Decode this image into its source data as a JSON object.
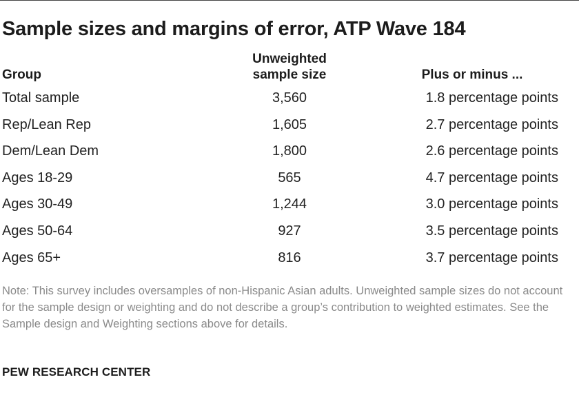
{
  "title": "Sample sizes and margins of error, ATP Wave 184",
  "table": {
    "headers": {
      "group": "Group",
      "sample_line1": "Unweighted",
      "sample_line2": "sample size",
      "moe": "Plus or minus ..."
    },
    "rows": [
      {
        "group": "Total sample",
        "sample": "3,560",
        "moe": "1.8 percentage points"
      },
      {
        "group": "Rep/Lean Rep",
        "sample": "1,605",
        "moe": "2.7 percentage points"
      },
      {
        "group": "Dem/Lean Dem",
        "sample": "1,800",
        "moe": "2.6 percentage points"
      },
      {
        "group": "Ages 18-29",
        "sample": "565",
        "moe": "4.7 percentage points"
      },
      {
        "group": "Ages 30-49",
        "sample": "1,244",
        "moe": "3.0 percentage points"
      },
      {
        "group": "Ages 50-64",
        "sample": "927",
        "moe": "3.5 percentage points"
      },
      {
        "group": "Ages 65+",
        "sample": "816",
        "moe": "3.7 percentage points"
      }
    ]
  },
  "note": "Note: This survey includes oversamples of non-Hispanic Asian adults. Unweighted sample sizes do not account for the sample design or weighting and do not describe a group’s contribution to weighted estimates. See the Sample design and Weighting sections above for details.",
  "source": "PEW RESEARCH CENTER",
  "colors": {
    "text": "#222222",
    "note": "#8a8a8a",
    "rule": "#444444"
  }
}
